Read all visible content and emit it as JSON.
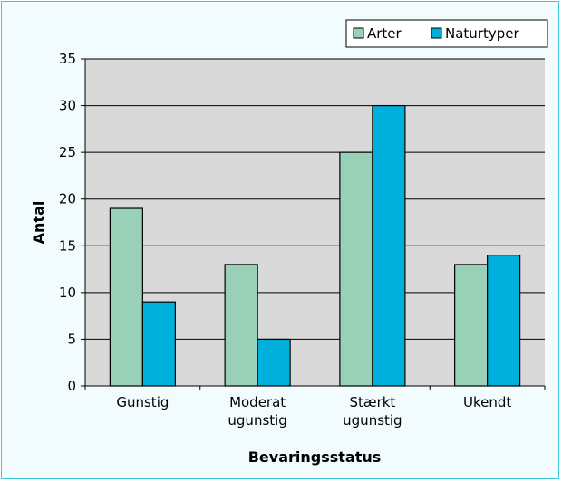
{
  "chart_data": {
    "type": "bar",
    "categories": [
      [
        "Gunstig"
      ],
      [
        "Moderat",
        "ugunstig"
      ],
      [
        "Stærkt",
        "ugunstig"
      ],
      [
        "Ukendt"
      ]
    ],
    "series": [
      {
        "name": "Arter",
        "color": "#99d0b8",
        "values": [
          19,
          13,
          25,
          13
        ]
      },
      {
        "name": "Naturtyper",
        "color": "#00b0dc",
        "values": [
          9,
          5,
          30,
          14
        ]
      }
    ],
    "xlabel": "Bevaringsstatus",
    "ylabel": "Antal",
    "ylim": [
      0,
      35
    ],
    "yticks": [
      0,
      5,
      10,
      15,
      20,
      25,
      30,
      35
    ],
    "grid": true,
    "legend_position": "top-right",
    "plot_background": "#d9d9d9"
  }
}
